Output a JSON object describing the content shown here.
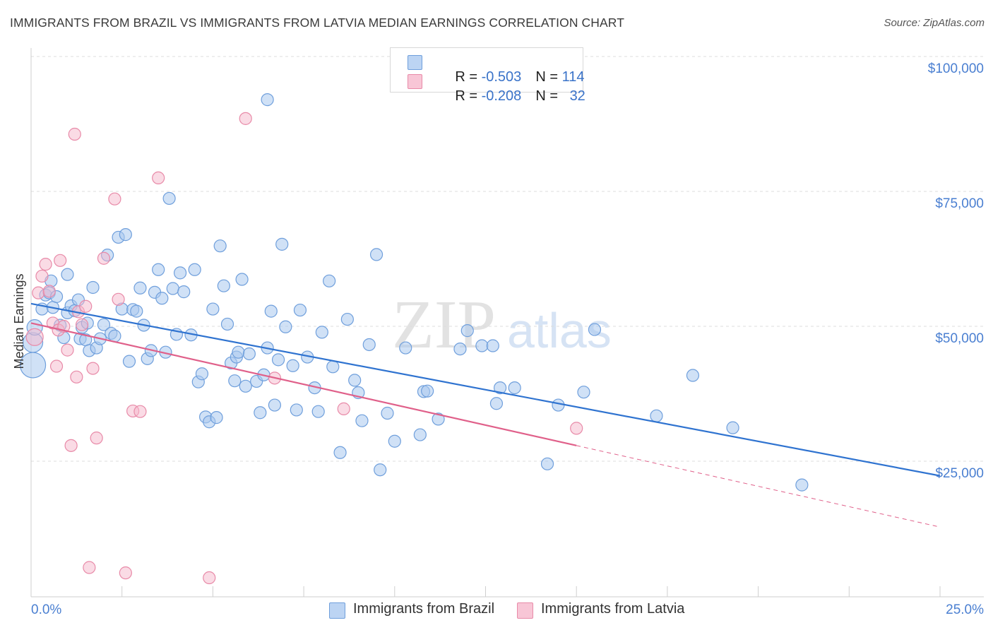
{
  "title": "IMMIGRANTS FROM BRAZIL VS IMMIGRANTS FROM LATVIA MEDIAN EARNINGS CORRELATION CHART",
  "source": "Source: ZipAtlas.com",
  "watermark": {
    "zip": "ZIP",
    "atlas": "atlas"
  },
  "legend_stats": {
    "brazil": {
      "r_label": "R = ",
      "r_value": "-0.503",
      "n_label": "N = ",
      "n_value": "114"
    },
    "latvia": {
      "r_label": "R = ",
      "r_value": "-0.208",
      "n_label": "N = ",
      "n_value": "32"
    }
  },
  "colors": {
    "brazil_fill": "#a9c8ef",
    "brazil_stroke": "#6f9fdc",
    "brazil_line": "#2f73d0",
    "latvia_fill": "#f6b8cb",
    "latvia_stroke": "#e88aa8",
    "latvia_line": "#e0608a",
    "tick_text": "#4a7fd1"
  },
  "chart_data": {
    "type": "scatter",
    "title": "IMMIGRANTS FROM BRAZIL VS IMMIGRANTS FROM LATVIA MEDIAN EARNINGS CORRELATION CHART",
    "xlabel": "",
    "ylabel": "Median Earnings",
    "xlim": [
      0,
      25
    ],
    "ylim": [
      0,
      100000
    ],
    "x_tick_labels": [
      "0.0%",
      "25.0%"
    ],
    "y_ticks": [
      {
        "value": 25000,
        "label": "$25,000"
      },
      {
        "value": 50000,
        "label": "$50,000"
      },
      {
        "value": 75000,
        "label": "$75,000"
      },
      {
        "value": 100000,
        "label": "$100,000"
      }
    ],
    "grid": true,
    "legend_position": "bottom",
    "series": [
      {
        "name": "Immigrants from Brazil",
        "r": -0.503,
        "n": 114,
        "trend": {
          "x": [
            0,
            25
          ],
          "y": [
            54200,
            22300
          ]
        },
        "points": [
          [
            0.05,
            42800
          ],
          [
            0.05,
            47000
          ],
          [
            0.1,
            49800
          ],
          [
            0.3,
            53200
          ],
          [
            0.4,
            55800
          ],
          [
            0.5,
            56200
          ],
          [
            0.55,
            58400
          ],
          [
            0.6,
            53500
          ],
          [
            0.7,
            55500
          ],
          [
            0.8,
            50200
          ],
          [
            0.9,
            47900
          ],
          [
            1.0,
            59600
          ],
          [
            1.0,
            52500
          ],
          [
            1.1,
            53800
          ],
          [
            1.2,
            52900
          ],
          [
            1.3,
            54900
          ],
          [
            1.35,
            47700
          ],
          [
            1.4,
            49800
          ],
          [
            1.5,
            47500
          ],
          [
            1.55,
            50600
          ],
          [
            1.6,
            45500
          ],
          [
            1.7,
            57200
          ],
          [
            1.8,
            46000
          ],
          [
            1.9,
            47700
          ],
          [
            2.0,
            50300
          ],
          [
            2.1,
            63200
          ],
          [
            2.2,
            48700
          ],
          [
            2.3,
            48200
          ],
          [
            2.4,
            66500
          ],
          [
            2.5,
            53200
          ],
          [
            2.6,
            67000
          ],
          [
            2.7,
            43500
          ],
          [
            2.8,
            53100
          ],
          [
            2.9,
            52800
          ],
          [
            3.0,
            57100
          ],
          [
            3.1,
            50200
          ],
          [
            3.2,
            44000
          ],
          [
            3.3,
            45500
          ],
          [
            3.4,
            56300
          ],
          [
            3.5,
            60500
          ],
          [
            3.6,
            55200
          ],
          [
            3.7,
            45200
          ],
          [
            3.8,
            73700
          ],
          [
            3.9,
            57000
          ],
          [
            4.0,
            48500
          ],
          [
            4.1,
            59900
          ],
          [
            4.2,
            56400
          ],
          [
            4.4,
            48400
          ],
          [
            4.5,
            60500
          ],
          [
            4.6,
            39700
          ],
          [
            4.7,
            41200
          ],
          [
            4.8,
            33200
          ],
          [
            4.9,
            32300
          ],
          [
            5.0,
            53200
          ],
          [
            5.1,
            33100
          ],
          [
            5.2,
            64900
          ],
          [
            5.3,
            57500
          ],
          [
            5.4,
            50400
          ],
          [
            5.5,
            43200
          ],
          [
            5.6,
            39900
          ],
          [
            5.65,
            44300
          ],
          [
            5.7,
            45200
          ],
          [
            5.8,
            58700
          ],
          [
            5.9,
            38900
          ],
          [
            6.0,
            44900
          ],
          [
            6.2,
            39800
          ],
          [
            6.3,
            34000
          ],
          [
            6.4,
            41000
          ],
          [
            6.5,
            46000
          ],
          [
            6.6,
            52800
          ],
          [
            6.7,
            35400
          ],
          [
            6.8,
            43800
          ],
          [
            6.9,
            65200
          ],
          [
            7.0,
            49900
          ],
          [
            7.2,
            42700
          ],
          [
            7.3,
            34500
          ],
          [
            7.4,
            53000
          ],
          [
            7.6,
            44300
          ],
          [
            7.8,
            38600
          ],
          [
            7.9,
            34200
          ],
          [
            8.0,
            48900
          ],
          [
            8.2,
            58400
          ],
          [
            8.3,
            42500
          ],
          [
            8.5,
            26600
          ],
          [
            8.7,
            51300
          ],
          [
            8.9,
            40000
          ],
          [
            9.0,
            37700
          ],
          [
            9.1,
            32500
          ],
          [
            9.3,
            46600
          ],
          [
            9.5,
            63300
          ],
          [
            9.6,
            23400
          ],
          [
            9.8,
            33900
          ],
          [
            10.0,
            28700
          ],
          [
            10.3,
            46000
          ],
          [
            10.7,
            29900
          ],
          [
            10.8,
            37900
          ],
          [
            10.9,
            38000
          ],
          [
            11.2,
            32800
          ],
          [
            11.8,
            45800
          ],
          [
            12.0,
            49200
          ],
          [
            12.4,
            46400
          ],
          [
            12.7,
            46400
          ],
          [
            12.8,
            35700
          ],
          [
            12.9,
            38600
          ],
          [
            13.3,
            38600
          ],
          [
            14.2,
            24500
          ],
          [
            14.5,
            35400
          ],
          [
            15.2,
            37800
          ],
          [
            15.5,
            49400
          ],
          [
            17.2,
            33400
          ],
          [
            18.2,
            40900
          ],
          [
            19.3,
            31200
          ],
          [
            21.2,
            20600
          ],
          [
            6.5,
            92000
          ]
        ]
      },
      {
        "name": "Immigrants from Latvia",
        "r": -0.208,
        "n": 32,
        "trend": {
          "x": [
            0,
            15
          ],
          "y": [
            50600,
            27900
          ]
        },
        "trend_dashed": {
          "x": [
            15,
            25
          ],
          "y": [
            27900,
            12800
          ]
        },
        "points": [
          [
            0.1,
            48000
          ],
          [
            0.2,
            56200
          ],
          [
            0.3,
            59300
          ],
          [
            0.4,
            61500
          ],
          [
            0.5,
            56500
          ],
          [
            0.6,
            50600
          ],
          [
            0.7,
            42600
          ],
          [
            0.75,
            49300
          ],
          [
            0.8,
            62200
          ],
          [
            0.9,
            50000
          ],
          [
            1.0,
            45600
          ],
          [
            1.1,
            27900
          ],
          [
            1.2,
            85600
          ],
          [
            1.25,
            40600
          ],
          [
            1.3,
            52700
          ],
          [
            1.4,
            50300
          ],
          [
            1.5,
            53700
          ],
          [
            1.6,
            5300
          ],
          [
            1.7,
            42200
          ],
          [
            1.8,
            29300
          ],
          [
            2.0,
            62600
          ],
          [
            2.3,
            73600
          ],
          [
            2.4,
            55000
          ],
          [
            2.6,
            4300
          ],
          [
            2.8,
            34300
          ],
          [
            3.0,
            34200
          ],
          [
            3.5,
            77500
          ],
          [
            4.9,
            3400
          ],
          [
            5.9,
            88500
          ],
          [
            6.7,
            40400
          ],
          [
            8.6,
            34700
          ],
          [
            15.0,
            31100
          ]
        ]
      }
    ]
  }
}
